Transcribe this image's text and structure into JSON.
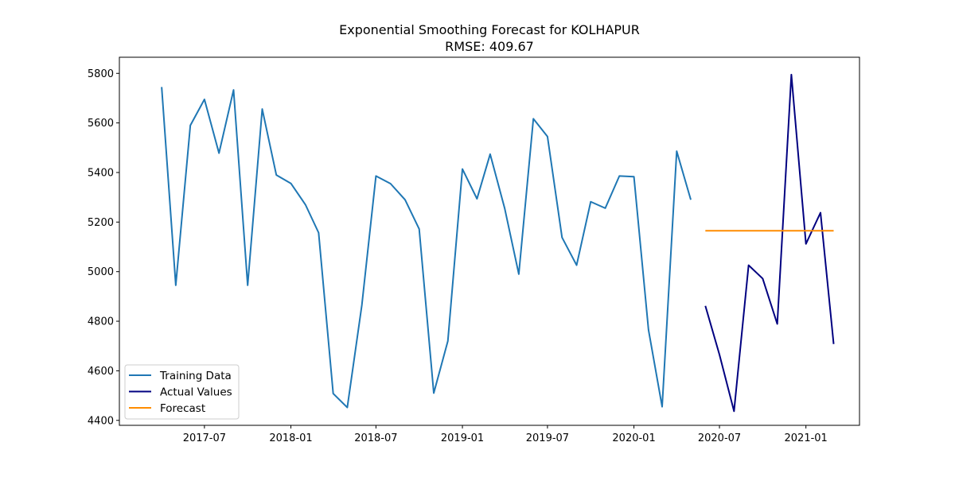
{
  "chart_data": {
    "type": "line",
    "title": "Exponential Smoothing Forecast for KOLHAPUR",
    "subtitle": "RMSE: 409.67",
    "xlabel": "",
    "ylabel": "",
    "x_axis": {
      "type": "date",
      "range": [
        "2017-01-01",
        "2021-04-25"
      ],
      "ticks": [
        "2017-07-01",
        "2018-01-01",
        "2018-07-01",
        "2019-01-01",
        "2019-07-01",
        "2020-01-01",
        "2020-07-01",
        "2021-01-01"
      ],
      "tick_labels": [
        "2017-07",
        "2018-01",
        "2018-07",
        "2019-01",
        "2019-07",
        "2020-01",
        "2020-07",
        "2021-01"
      ]
    },
    "y_axis": {
      "range": [
        4380,
        5865
      ],
      "ticks": [
        4400,
        4600,
        4800,
        5000,
        5200,
        5400,
        5600,
        5800
      ]
    },
    "grid": false,
    "legend_position": "lower-left",
    "series": [
      {
        "name": "Training Data",
        "color": "#1f77b4",
        "points": [
          [
            "2017-04-01",
            5745
          ],
          [
            "2017-05-01",
            4945
          ],
          [
            "2017-06-01",
            5590
          ],
          [
            "2017-07-01",
            5695
          ],
          [
            "2017-08-01",
            5478
          ],
          [
            "2017-09-01",
            5733
          ],
          [
            "2017-10-01",
            4945
          ],
          [
            "2017-11-01",
            5656
          ],
          [
            "2017-12-01",
            5390
          ],
          [
            "2018-01-01",
            5356
          ],
          [
            "2018-02-01",
            5270
          ],
          [
            "2018-03-01",
            5157
          ],
          [
            "2018-04-01",
            4508
          ],
          [
            "2018-05-01",
            4452
          ],
          [
            "2018-06-01",
            4865
          ],
          [
            "2018-07-01",
            5386
          ],
          [
            "2018-08-01",
            5355
          ],
          [
            "2018-09-01",
            5290
          ],
          [
            "2018-10-01",
            5172
          ],
          [
            "2018-11-01",
            4510
          ],
          [
            "2018-12-01",
            4720
          ],
          [
            "2019-01-01",
            5414
          ],
          [
            "2019-02-01",
            5294
          ],
          [
            "2019-03-01",
            5474
          ],
          [
            "2019-04-01",
            5255
          ],
          [
            "2019-05-01",
            4990
          ],
          [
            "2019-06-01",
            5617
          ],
          [
            "2019-07-01",
            5545
          ],
          [
            "2019-08-01",
            5138
          ],
          [
            "2019-09-01",
            5026
          ],
          [
            "2019-10-01",
            5282
          ],
          [
            "2019-11-01",
            5256
          ],
          [
            "2019-12-01",
            5386
          ],
          [
            "2020-01-01",
            5383
          ],
          [
            "2020-02-01",
            4765
          ],
          [
            "2020-03-01",
            4455
          ],
          [
            "2020-04-01",
            5486
          ],
          [
            "2020-05-01",
            5290
          ]
        ]
      },
      {
        "name": "Actual Values",
        "color": "#000080",
        "points": [
          [
            "2020-06-01",
            4862
          ],
          [
            "2020-07-01",
            4665
          ],
          [
            "2020-08-01",
            4437
          ],
          [
            "2020-09-01",
            5026
          ],
          [
            "2020-10-01",
            4972
          ],
          [
            "2020-11-01",
            4789
          ],
          [
            "2020-12-01",
            5795
          ],
          [
            "2021-01-01",
            5112
          ],
          [
            "2021-02-01",
            5238
          ],
          [
            "2021-03-01",
            4708
          ]
        ]
      },
      {
        "name": "Forecast",
        "color": "#ff8c00",
        "points": [
          [
            "2020-06-01",
            5165
          ],
          [
            "2020-07-01",
            5165
          ],
          [
            "2020-08-01",
            5165
          ],
          [
            "2020-09-01",
            5165
          ],
          [
            "2020-10-01",
            5165
          ],
          [
            "2020-11-01",
            5165
          ],
          [
            "2020-12-01",
            5165
          ],
          [
            "2021-01-01",
            5165
          ],
          [
            "2021-02-01",
            5165
          ],
          [
            "2021-03-01",
            5165
          ]
        ]
      }
    ]
  }
}
